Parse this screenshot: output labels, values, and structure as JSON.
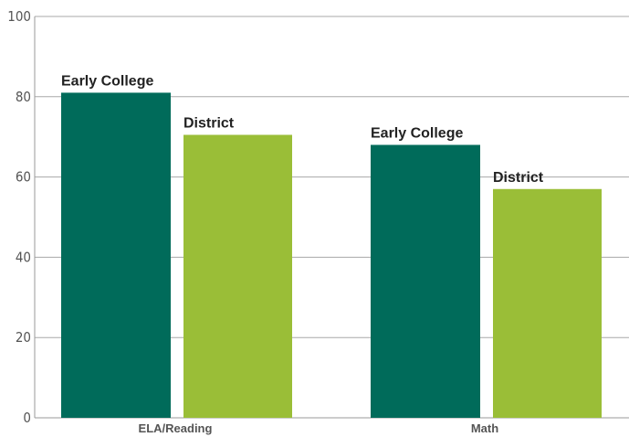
{
  "chart_data": {
    "type": "bar",
    "categories": [
      "ELA/Reading",
      "Math"
    ],
    "series": [
      {
        "name": "Early College",
        "values": [
          81,
          68
        ],
        "color": "#006b5a"
      },
      {
        "name": "District",
        "values": [
          70.5,
          57
        ],
        "color": "#9abe37"
      }
    ],
    "ylim": [
      0,
      100
    ],
    "yticks": [
      0,
      20,
      40,
      60,
      80,
      100
    ],
    "grid": true,
    "legend": "none",
    "data_labels": "series-name-above-bar",
    "title": "",
    "xlabel": "",
    "ylabel": ""
  }
}
